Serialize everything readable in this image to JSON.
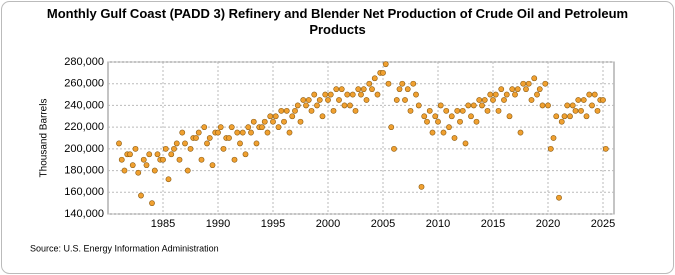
{
  "chart_data": {
    "type": "scatter",
    "title": "Monthly Gulf Coast (PADD 3) Refinery and Blender Net Production of Crude Oil and Petroleum Products",
    "y_label": "Thousand Barrels",
    "source": "Source: U.S. Energy Information Administration",
    "color": "#f0a030",
    "edge_color": "#8a5a10",
    "grid": true,
    "xlim": [
      1980,
      2026
    ],
    "xticks": [
      1985,
      1990,
      1995,
      2000,
      2005,
      2010,
      2015,
      2020,
      2025
    ],
    "ylim": [
      140000,
      280000
    ],
    "yticks": [
      {
        "value": 140000,
        "label": "140,000"
      },
      {
        "value": 160000,
        "label": "160,000"
      },
      {
        "value": 180000,
        "label": "180,000"
      },
      {
        "value": 200000,
        "label": "200,000"
      },
      {
        "value": 220000,
        "label": "220,000"
      },
      {
        "value": 240000,
        "label": "240,000"
      },
      {
        "value": 260000,
        "label": "260,000"
      },
      {
        "value": 280000,
        "label": "280,000"
      }
    ],
    "x": [
      1981,
      1981.25,
      1981.5,
      1981.75,
      1982,
      1982.25,
      1982.5,
      1982.75,
      1983,
      1983.25,
      1983.5,
      1983.75,
      1984,
      1984.25,
      1984.5,
      1984.75,
      1985,
      1985.25,
      1985.5,
      1985.75,
      1986,
      1986.25,
      1986.5,
      1986.75,
      1987,
      1987.25,
      1987.5,
      1987.75,
      1988,
      1988.25,
      1988.5,
      1988.75,
      1989,
      1989.25,
      1989.5,
      1989.75,
      1990,
      1990.25,
      1990.5,
      1990.75,
      1991,
      1991.25,
      1991.5,
      1991.75,
      1992,
      1992.25,
      1992.5,
      1992.75,
      1993,
      1993.25,
      1993.5,
      1993.75,
      1994,
      1994.25,
      1994.5,
      1994.75,
      1995,
      1995.25,
      1995.5,
      1995.75,
      1996,
      1996.25,
      1996.5,
      1996.75,
      1997,
      1997.25,
      1997.5,
      1997.75,
      1998,
      1998.25,
      1998.5,
      1998.75,
      1999,
      1999.25,
      1999.5,
      1999.75,
      2000,
      2000.25,
      2000.5,
      2000.75,
      2001,
      2001.25,
      2001.5,
      2001.75,
      2002,
      2002.25,
      2002.5,
      2002.75,
      2003,
      2003.25,
      2003.5,
      2003.75,
      2004,
      2004.25,
      2004.5,
      2004.75,
      2005,
      2005.25,
      2005.5,
      2005.75,
      2006,
      2006.25,
      2006.5,
      2006.75,
      2007,
      2007.25,
      2007.5,
      2007.75,
      2008,
      2008.25,
      2008.5,
      2008.75,
      2009,
      2009.25,
      2009.5,
      2009.75,
      2010,
      2010.25,
      2010.5,
      2010.75,
      2011,
      2011.25,
      2011.5,
      2011.75,
      2012,
      2012.25,
      2012.5,
      2012.75,
      2013,
      2013.25,
      2013.5,
      2013.75,
      2014,
      2014.25,
      2014.5,
      2014.75,
      2015,
      2015.25,
      2015.5,
      2015.75,
      2016,
      2016.25,
      2016.5,
      2016.75,
      2017,
      2017.25,
      2017.5,
      2017.75,
      2018,
      2018.25,
      2018.5,
      2018.75,
      2019,
      2019.25,
      2019.5,
      2019.75,
      2020,
      2020.25,
      2020.5,
      2020.75,
      2021,
      2021.25,
      2021.5,
      2021.75,
      2022,
      2022.25,
      2022.5,
      2022.75,
      2023,
      2023.25,
      2023.5,
      2023.75,
      2024,
      2024.25,
      2024.5,
      2024.75,
      2025,
      2025.25
    ],
    "values": [
      205000,
      190000,
      180000,
      195000,
      195000,
      185000,
      200000,
      178000,
      157000,
      190000,
      185000,
      195000,
      150000,
      180000,
      195000,
      190000,
      190000,
      200000,
      172000,
      195000,
      200000,
      205000,
      190000,
      215000,
      205000,
      180000,
      200000,
      210000,
      210000,
      215000,
      190000,
      220000,
      205000,
      210000,
      185000,
      215000,
      215000,
      220000,
      200000,
      210000,
      210000,
      220000,
      190000,
      215000,
      205000,
      215000,
      195000,
      220000,
      215000,
      225000,
      205000,
      220000,
      220000,
      225000,
      215000,
      230000,
      225000,
      230000,
      220000,
      235000,
      225000,
      235000,
      215000,
      230000,
      235000,
      240000,
      225000,
      245000,
      240000,
      245000,
      235000,
      250000,
      240000,
      245000,
      230000,
      250000,
      245000,
      250000,
      235000,
      255000,
      245000,
      255000,
      240000,
      250000,
      240000,
      250000,
      235000,
      255000,
      250000,
      255000,
      245000,
      260000,
      255000,
      265000,
      250000,
      270000,
      270000,
      278000,
      260000,
      220000,
      200000,
      245000,
      255000,
      260000,
      245000,
      255000,
      235000,
      260000,
      250000,
      240000,
      165000,
      230000,
      225000,
      235000,
      215000,
      230000,
      225000,
      240000,
      215000,
      235000,
      220000,
      230000,
      210000,
      235000,
      225000,
      235000,
      205000,
      240000,
      230000,
      240000,
      225000,
      245000,
      240000,
      245000,
      235000,
      250000,
      245000,
      250000,
      235000,
      255000,
      245000,
      250000,
      230000,
      255000,
      250000,
      255000,
      215000,
      260000,
      255000,
      260000,
      245000,
      265000,
      250000,
      255000,
      240000,
      260000,
      240000,
      200000,
      210000,
      230000,
      155000,
      225000,
      230000,
      240000,
      230000,
      240000,
      235000,
      245000,
      235000,
      245000,
      230000,
      250000,
      240000,
      250000,
      235000,
      245000,
      245000,
      200000
    ]
  }
}
